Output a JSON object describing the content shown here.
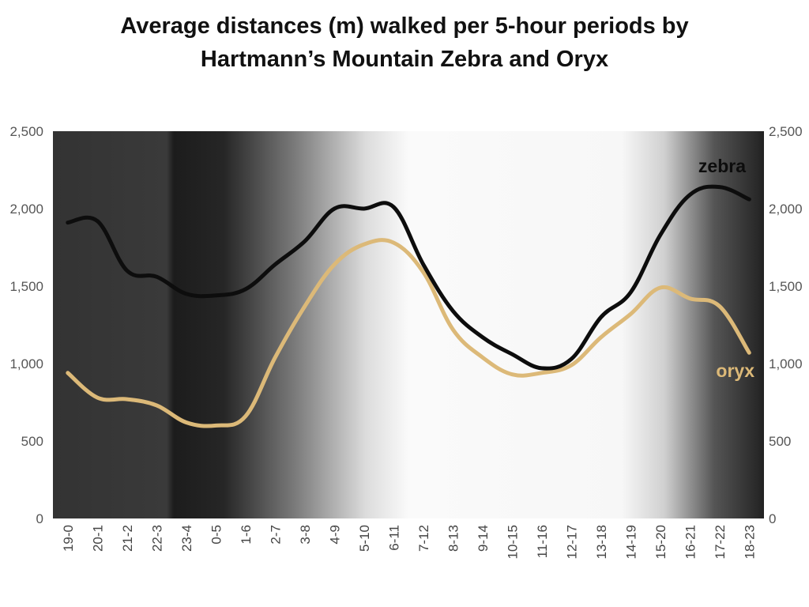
{
  "chart_data": {
    "type": "line",
    "title_line1": "Average distances (m) walked per 5-hour periods by",
    "title_line2": "Hartmann’s Mountain Zebra and Oryx",
    "categories": [
      "19-0",
      "20-1",
      "21-2",
      "22-3",
      "23-4",
      "0-5",
      "1-6",
      "2-7",
      "3-8",
      "4-9",
      "5-10",
      "6-11",
      "7-12",
      "8-13",
      "9-14",
      "10-15",
      "11-16",
      "12-17",
      "13-18",
      "14-19",
      "15-20",
      "16-21",
      "17-22",
      "18-23"
    ],
    "series": [
      {
        "name": "zebra",
        "color": "#0d0d0d",
        "values": [
          1910,
          1920,
          1600,
          1560,
          1450,
          1440,
          1480,
          1640,
          1790,
          2000,
          2000,
          2010,
          1640,
          1340,
          1170,
          1060,
          970,
          1030,
          1300,
          1460,
          1830,
          2090,
          2140,
          2060
        ]
      },
      {
        "name": "oryx",
        "color": "#dcb978",
        "values": [
          940,
          780,
          770,
          730,
          620,
          600,
          660,
          1040,
          1370,
          1640,
          1770,
          1780,
          1590,
          1220,
          1040,
          930,
          940,
          990,
          1170,
          1320,
          1490,
          1420,
          1370,
          1070
        ]
      }
    ],
    "ylim": [
      0,
      2500
    ],
    "y_ticks": [
      0,
      500,
      1000,
      1500,
      2000,
      2500
    ],
    "y_tick_labels": [
      "0",
      "500",
      "1,000",
      "1,500",
      "2,000",
      "2,500"
    ],
    "secondary_y_axis": true,
    "grid": false,
    "legend": "inline labels at right end of lines",
    "background": "day-night gradient: dark at night periods, light during day periods"
  }
}
